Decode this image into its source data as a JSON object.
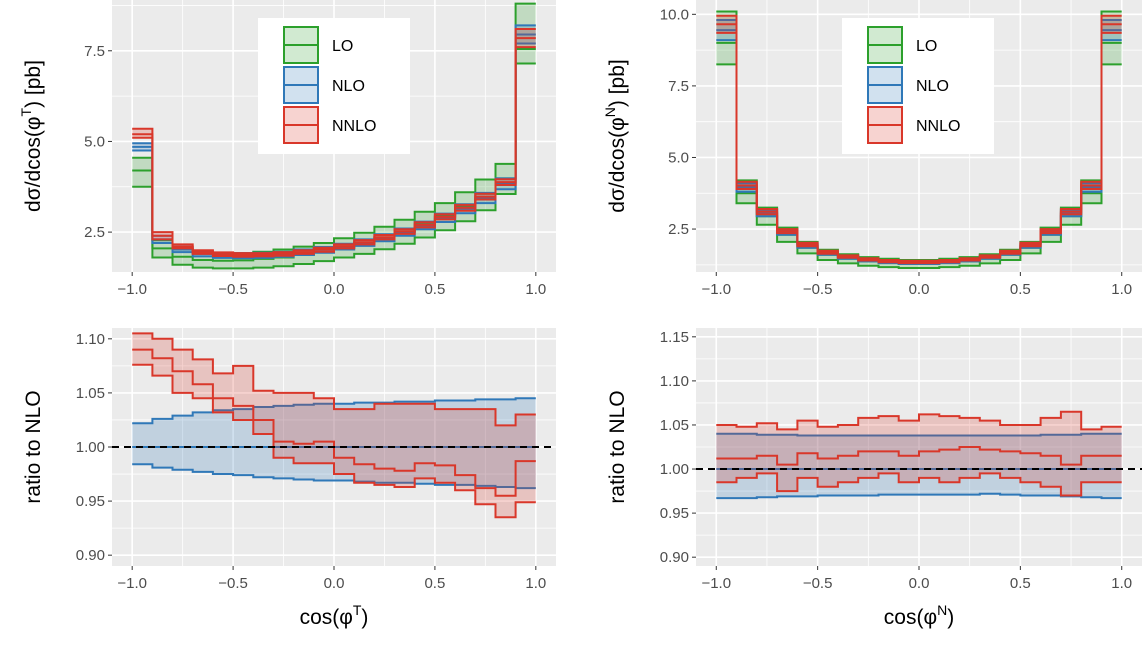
{
  "colors": {
    "LO": "#2ca02c",
    "NLO": "#2f78b8",
    "NNLO": "#d9372a",
    "panel_bg": "#ebebeb",
    "grid": "#ffffff",
    "reference_line": "#000000"
  },
  "legend": {
    "position": "top-center",
    "entries": [
      "LO",
      "NLO",
      "NNLO"
    ]
  },
  "chart_data": [
    {
      "id": "top-left",
      "type": "line",
      "style": "step-band",
      "ylabel": {
        "base": "dσ/dcos(φ",
        "sup": "T",
        "tail": ") [pb]"
      },
      "xlabel": null,
      "xlim": [
        -1.1,
        1.1
      ],
      "ylim": [
        1.4,
        8.9
      ],
      "xticks": [
        -1.0,
        -0.5,
        0.0,
        0.5,
        1.0
      ],
      "xtick_labels": [
        "−1.0",
        "−0.5",
        "0.0",
        "0.5",
        "1.0"
      ],
      "yticks": [
        2.5,
        5.0,
        7.5
      ],
      "ytick_labels": [
        "2.5",
        "5.0",
        "7.5"
      ],
      "bins": [
        -1.0,
        -0.9,
        -0.8,
        -0.7,
        -0.6,
        -0.5,
        -0.4,
        -0.3,
        -0.2,
        -0.1,
        0.0,
        0.1,
        0.2,
        0.3,
        0.4,
        0.5,
        0.6,
        0.7,
        0.8,
        0.9,
        1.0
      ],
      "series": [
        {
          "name": "LO",
          "low": [
            3.75,
            1.8,
            1.6,
            1.52,
            1.5,
            1.5,
            1.52,
            1.56,
            1.62,
            1.7,
            1.8,
            1.9,
            2.03,
            2.18,
            2.35,
            2.55,
            2.8,
            3.1,
            3.55,
            7.15
          ],
          "central": [
            4.2,
            2.05,
            1.82,
            1.73,
            1.71,
            1.72,
            1.76,
            1.8,
            1.87,
            1.95,
            2.07,
            2.2,
            2.35,
            2.52,
            2.72,
            2.95,
            3.22,
            3.56,
            3.98,
            7.55
          ],
          "high": [
            4.55,
            2.28,
            2.02,
            1.92,
            1.9,
            1.92,
            1.96,
            2.02,
            2.1,
            2.2,
            2.33,
            2.48,
            2.65,
            2.84,
            3.06,
            3.3,
            3.6,
            3.95,
            4.38,
            8.8
          ]
        },
        {
          "name": "NLO",
          "low": [
            4.75,
            2.2,
            1.95,
            1.83,
            1.79,
            1.78,
            1.79,
            1.82,
            1.87,
            1.93,
            2.02,
            2.12,
            2.25,
            2.4,
            2.58,
            2.78,
            3.02,
            3.3,
            3.68,
            7.7
          ],
          "central": [
            4.85,
            2.3,
            2.02,
            1.9,
            1.86,
            1.85,
            1.86,
            1.89,
            1.94,
            2.01,
            2.1,
            2.21,
            2.35,
            2.5,
            2.68,
            2.9,
            3.14,
            3.45,
            3.84,
            7.95
          ],
          "high": [
            4.95,
            2.4,
            2.1,
            1.97,
            1.93,
            1.92,
            1.93,
            1.96,
            2.02,
            2.09,
            2.18,
            2.3,
            2.44,
            2.6,
            2.79,
            3.01,
            3.27,
            3.58,
            3.98,
            8.2
          ]
        },
        {
          "name": "NNLO",
          "low": [
            5.1,
            2.3,
            2.05,
            1.9,
            1.84,
            1.82,
            1.83,
            1.85,
            1.9,
            1.96,
            2.05,
            2.16,
            2.3,
            2.45,
            2.63,
            2.85,
            3.09,
            3.4,
            3.8,
            7.6
          ],
          "central": [
            5.2,
            2.4,
            2.1,
            1.95,
            1.89,
            1.87,
            1.88,
            1.9,
            1.95,
            2.02,
            2.11,
            2.22,
            2.36,
            2.52,
            2.7,
            2.92,
            3.17,
            3.48,
            3.88,
            7.85
          ],
          "high": [
            5.35,
            2.5,
            2.16,
            2.0,
            1.94,
            1.92,
            1.92,
            1.95,
            2.0,
            2.07,
            2.16,
            2.28,
            2.42,
            2.58,
            2.77,
            2.99,
            3.25,
            3.56,
            3.96,
            8.1
          ]
        }
      ]
    },
    {
      "id": "top-right",
      "type": "line",
      "style": "step-band",
      "ylabel": {
        "base": "dσ/dcos(φ",
        "sup": "N",
        "tail": ") [pb]"
      },
      "xlabel": null,
      "xlim": [
        -1.1,
        1.1
      ],
      "ylim": [
        1.0,
        10.5
      ],
      "xticks": [
        -1.0,
        -0.5,
        0.0,
        0.5,
        1.0
      ],
      "xtick_labels": [
        "−1.0",
        "−0.5",
        "0.0",
        "0.5",
        "1.0"
      ],
      "yticks": [
        2.5,
        5.0,
        7.5,
        10.0
      ],
      "ytick_labels": [
        "2.5",
        "5.0",
        "7.5",
        "10.0"
      ],
      "bins": [
        -1.0,
        -0.9,
        -0.8,
        -0.7,
        -0.6,
        -0.5,
        -0.4,
        -0.3,
        -0.2,
        -0.1,
        0.0,
        0.1,
        0.2,
        0.3,
        0.4,
        0.5,
        0.6,
        0.7,
        0.8,
        0.9,
        1.0
      ],
      "series": [
        {
          "name": "LO",
          "low": [
            8.25,
            3.4,
            2.65,
            2.05,
            1.65,
            1.42,
            1.3,
            1.22,
            1.17,
            1.14,
            1.14,
            1.17,
            1.22,
            1.3,
            1.42,
            1.65,
            2.05,
            2.65,
            3.4,
            8.25
          ],
          "central": [
            9.0,
            3.75,
            2.95,
            2.3,
            1.85,
            1.6,
            1.46,
            1.37,
            1.31,
            1.28,
            1.28,
            1.31,
            1.37,
            1.46,
            1.6,
            1.85,
            2.3,
            2.95,
            3.75,
            9.0
          ],
          "high": [
            10.1,
            4.2,
            3.25,
            2.55,
            2.05,
            1.78,
            1.62,
            1.52,
            1.46,
            1.42,
            1.42,
            1.46,
            1.52,
            1.62,
            1.78,
            2.05,
            2.55,
            3.25,
            4.2,
            10.1
          ]
        },
        {
          "name": "NLO",
          "low": [
            9.1,
            3.8,
            2.95,
            2.3,
            1.85,
            1.6,
            1.46,
            1.37,
            1.31,
            1.28,
            1.28,
            1.31,
            1.37,
            1.46,
            1.6,
            1.85,
            2.3,
            2.95,
            3.8,
            9.1
          ],
          "central": [
            9.45,
            3.95,
            3.05,
            2.38,
            1.92,
            1.66,
            1.51,
            1.42,
            1.36,
            1.33,
            1.33,
            1.36,
            1.42,
            1.51,
            1.66,
            1.92,
            2.38,
            3.05,
            3.95,
            9.45
          ],
          "high": [
            9.8,
            4.1,
            3.17,
            2.47,
            1.99,
            1.72,
            1.57,
            1.47,
            1.41,
            1.38,
            1.38,
            1.41,
            1.47,
            1.57,
            1.72,
            1.99,
            2.47,
            3.17,
            4.1,
            9.8
          ]
        },
        {
          "name": "NNLO",
          "low": [
            9.35,
            3.9,
            3.02,
            2.36,
            1.9,
            1.64,
            1.5,
            1.4,
            1.34,
            1.31,
            1.31,
            1.34,
            1.4,
            1.5,
            1.64,
            1.9,
            2.36,
            3.02,
            3.9,
            9.35
          ],
          "central": [
            9.65,
            4.02,
            3.11,
            2.43,
            1.96,
            1.69,
            1.54,
            1.44,
            1.38,
            1.35,
            1.35,
            1.38,
            1.44,
            1.54,
            1.69,
            1.96,
            2.43,
            3.11,
            4.02,
            9.65
          ],
          "high": [
            9.95,
            4.15,
            3.2,
            2.5,
            2.02,
            1.74,
            1.58,
            1.48,
            1.42,
            1.39,
            1.39,
            1.42,
            1.48,
            1.58,
            1.74,
            2.02,
            2.5,
            3.2,
            4.15,
            9.95
          ]
        }
      ]
    },
    {
      "id": "bottom-left",
      "type": "line",
      "style": "step-band",
      "ylabel": {
        "base": "ratio to NLO",
        "sup": "",
        "tail": ""
      },
      "xlabel": {
        "base": "cos(φ",
        "sup": "T",
        "tail": ")"
      },
      "xlim": [
        -1.1,
        1.1
      ],
      "ylim": [
        0.89,
        1.11
      ],
      "reference_line": 1.0,
      "xticks": [
        -1.0,
        -0.5,
        0.0,
        0.5,
        1.0
      ],
      "xtick_labels": [
        "−1.0",
        "−0.5",
        "0.0",
        "0.5",
        "1.0"
      ],
      "yticks": [
        0.9,
        0.95,
        1.0,
        1.05,
        1.1
      ],
      "ytick_labels": [
        "0.90",
        "0.95",
        "1.00",
        "1.05",
        "1.10"
      ],
      "bins": [
        -1.0,
        -0.9,
        -0.8,
        -0.7,
        -0.6,
        -0.5,
        -0.4,
        -0.3,
        -0.2,
        -0.1,
        0.0,
        0.1,
        0.2,
        0.3,
        0.4,
        0.5,
        0.6,
        0.7,
        0.8,
        0.9,
        1.0
      ],
      "series": [
        {
          "name": "NLO",
          "low": [
            0.984,
            0.981,
            0.979,
            0.977,
            0.975,
            0.974,
            0.972,
            0.971,
            0.97,
            0.969,
            0.969,
            0.968,
            0.967,
            0.967,
            0.966,
            0.965,
            0.965,
            0.964,
            0.963,
            0.962
          ],
          "central": [
            1.0,
            1.0,
            1.0,
            1.0,
            1.0,
            1.0,
            1.0,
            1.0,
            1.0,
            1.0,
            1.0,
            1.0,
            1.0,
            1.0,
            1.0,
            1.0,
            1.0,
            1.0,
            1.0,
            1.0
          ],
          "high": [
            1.022,
            1.026,
            1.029,
            1.032,
            1.034,
            1.035,
            1.037,
            1.038,
            1.039,
            1.04,
            1.04,
            1.041,
            1.041,
            1.042,
            1.042,
            1.043,
            1.043,
            1.044,
            1.044,
            1.045
          ]
        },
        {
          "name": "NNLO",
          "low": [
            1.076,
            1.066,
            1.05,
            1.045,
            1.032,
            1.025,
            1.012,
            0.99,
            0.985,
            0.985,
            0.975,
            0.967,
            0.965,
            0.963,
            0.971,
            0.967,
            0.96,
            0.947,
            0.935,
            0.949
          ],
          "central": [
            1.09,
            1.082,
            1.07,
            1.058,
            1.045,
            1.038,
            1.025,
            1.005,
            1.003,
            1.005,
            0.99,
            0.984,
            0.98,
            0.978,
            0.985,
            0.983,
            0.974,
            0.962,
            0.955,
            0.987
          ],
          "high": [
            1.105,
            1.1,
            1.09,
            1.081,
            1.068,
            1.075,
            1.052,
            1.05,
            1.05,
            1.045,
            1.035,
            1.035,
            1.04,
            1.04,
            1.04,
            1.035,
            1.035,
            1.035,
            1.02,
            1.03
          ]
        }
      ]
    },
    {
      "id": "bottom-right",
      "type": "line",
      "style": "step-band",
      "ylabel": {
        "base": "ratio to NLO",
        "sup": "",
        "tail": ""
      },
      "xlabel": {
        "base": "cos(φ",
        "sup": "N",
        "tail": ")"
      },
      "xlim": [
        -1.1,
        1.1
      ],
      "ylim": [
        0.89,
        1.16
      ],
      "reference_line": 1.0,
      "xticks": [
        -1.0,
        -0.5,
        0.0,
        0.5,
        1.0
      ],
      "xtick_labels": [
        "−1.0",
        "−0.5",
        "0.0",
        "0.5",
        "1.0"
      ],
      "yticks": [
        0.9,
        0.95,
        1.0,
        1.05,
        1.1,
        1.15
      ],
      "ytick_labels": [
        "0.90",
        "0.95",
        "1.00",
        "1.05",
        "1.10",
        "1.15"
      ],
      "bins": [
        -1.0,
        -0.9,
        -0.8,
        -0.7,
        -0.6,
        -0.5,
        -0.4,
        -0.3,
        -0.2,
        -0.1,
        0.0,
        0.1,
        0.2,
        0.3,
        0.4,
        0.5,
        0.6,
        0.7,
        0.8,
        0.9,
        1.0
      ],
      "series": [
        {
          "name": "NLO",
          "low": [
            0.967,
            0.967,
            0.968,
            0.969,
            0.969,
            0.97,
            0.97,
            0.97,
            0.971,
            0.971,
            0.971,
            0.971,
            0.971,
            0.972,
            0.971,
            0.97,
            0.97,
            0.969,
            0.968,
            0.967
          ],
          "central": [
            1.0,
            1.0,
            1.0,
            1.0,
            1.0,
            1.0,
            1.0,
            1.0,
            1.0,
            1.0,
            1.0,
            1.0,
            1.0,
            1.0,
            1.0,
            1.0,
            1.0,
            1.0,
            1.0,
            1.0
          ],
          "high": [
            1.04,
            1.04,
            1.039,
            1.039,
            1.038,
            1.038,
            1.038,
            1.038,
            1.038,
            1.038,
            1.038,
            1.038,
            1.038,
            1.038,
            1.038,
            1.038,
            1.039,
            1.039,
            1.04,
            1.04
          ]
        },
        {
          "name": "NNLO",
          "low": [
            0.985,
            0.99,
            0.995,
            0.975,
            0.99,
            0.98,
            0.985,
            0.99,
            0.995,
            0.985,
            0.99,
            0.985,
            0.99,
            0.995,
            0.99,
            0.985,
            0.98,
            0.97,
            0.985,
            0.985
          ],
          "central": [
            1.012,
            1.012,
            1.015,
            1.005,
            1.018,
            1.012,
            1.015,
            1.02,
            1.02,
            1.015,
            1.02,
            1.022,
            1.025,
            1.022,
            1.02,
            1.018,
            1.015,
            1.005,
            1.015,
            1.015
          ],
          "high": [
            1.05,
            1.048,
            1.052,
            1.045,
            1.055,
            1.048,
            1.05,
            1.058,
            1.06,
            1.055,
            1.062,
            1.06,
            1.058,
            1.055,
            1.05,
            1.05,
            1.058,
            1.065,
            1.045,
            1.048
          ]
        }
      ]
    }
  ]
}
